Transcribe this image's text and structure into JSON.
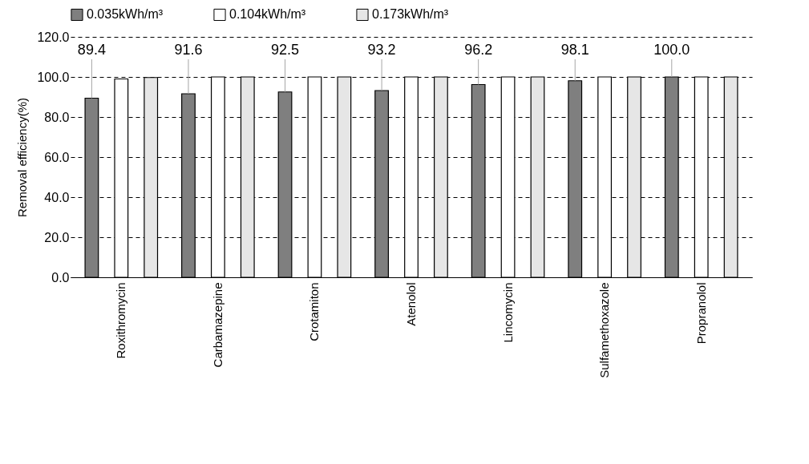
{
  "chart_data": {
    "type": "bar",
    "ylabel": "Removal efficiency(%)",
    "categories": [
      "Roxithromycin",
      "Carbamazepine",
      "Crotamiton",
      "Atenolol",
      "Lincomycin",
      "Sulfamethoxazole",
      "Propranolol"
    ],
    "series": [
      {
        "name": "0.035kWh/m³",
        "color": "#7f7f7f",
        "values": [
          89.4,
          91.6,
          92.5,
          93.2,
          96.2,
          98.1,
          100.0
        ],
        "value_labels": [
          "89.4",
          "91.6",
          "92.5",
          "93.2",
          "96.2",
          "98.1",
          "100.0"
        ]
      },
      {
        "name": "0.104kWh/m³",
        "color": "#ffffff",
        "values": [
          99.0,
          100,
          100,
          100,
          100,
          100,
          100
        ]
      },
      {
        "name": "0.173kWh/m³",
        "color": "#e6e6e6",
        "values": [
          99.7,
          100,
          100,
          100,
          100,
          100,
          100
        ]
      }
    ],
    "ylim": [
      0,
      120
    ],
    "yticks": [
      {
        "value": 0,
        "label": "0.0"
      },
      {
        "value": 20,
        "label": "20.0"
      },
      {
        "value": 40,
        "label": "40.0"
      },
      {
        "value": 60,
        "label": "60.0"
      },
      {
        "value": 80,
        "label": "80.0"
      },
      {
        "value": 100,
        "label": "100.0"
      },
      {
        "value": 120,
        "label": "120.0"
      }
    ],
    "grid": "y",
    "legend": "top"
  }
}
